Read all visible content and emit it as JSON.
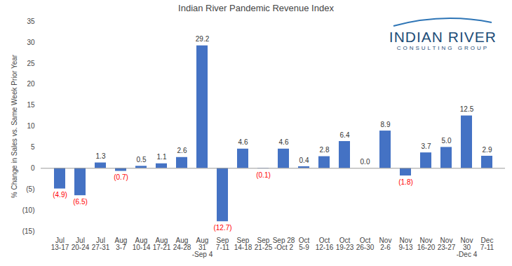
{
  "chart_data": {
    "type": "bar",
    "title": "Indian River Pandemic Revenue Index",
    "y_label": "% Change in Sales vs. Same Week Prior Year",
    "annotations": [
      "INDIAN RIVER",
      "CONSULTING GROUP"
    ],
    "categories": [
      "Jul\n13-17",
      "Jul\n20-24",
      "Jul\n27-31",
      "Aug\n3-7",
      "Aug\n10-14",
      "Aug\n17-21",
      "Aug\n24-28",
      "Aug\n31\n-Sep 4",
      "Sep\n7-11",
      "Sep\n14-18",
      "Sep\n21-25",
      "Sep 28\n-Oct 2",
      "Oct\n5-9",
      "Oct\n12-16",
      "Oct\n19-23",
      "Oct\n26-30",
      "Nov\n2-6",
      "Nov\n9-13",
      "Nov\n16-20",
      "Nov\n23-27",
      "Nov\n30\n-Dec 4",
      "Dec\n7-11"
    ],
    "values": [
      -4.9,
      -6.5,
      1.3,
      -0.7,
      0.5,
      1.1,
      2.6,
      29.2,
      -12.7,
      4.6,
      -0.1,
      4.6,
      0.4,
      2.8,
      6.4,
      0.0,
      8.9,
      -1.8,
      3.7,
      5.0,
      12.5,
      2.9
    ],
    "value_labels": [
      "(4.9)",
      "(6.5)",
      "1.3",
      "(0.7)",
      "0.5",
      "1.1",
      "2.6",
      "29.2",
      "(12.7)",
      "4.6",
      "(0.1)",
      "4.6",
      "0.4",
      "2.8",
      "6.4",
      "0.0",
      "8.9",
      "(1.8)",
      "3.7",
      "5.0",
      "12.5",
      "2.9"
    ],
    "color": "#4472c4",
    "ylim": [
      -15,
      35
    ],
    "yticks": [
      {
        "value": -15,
        "label": "(15)"
      },
      {
        "value": -10,
        "label": "(10)"
      },
      {
        "value": -5,
        "label": "(5)"
      },
      0,
      5,
      10,
      15,
      20,
      25,
      30,
      35
    ],
    "grid": false,
    "data_labels": true
  }
}
